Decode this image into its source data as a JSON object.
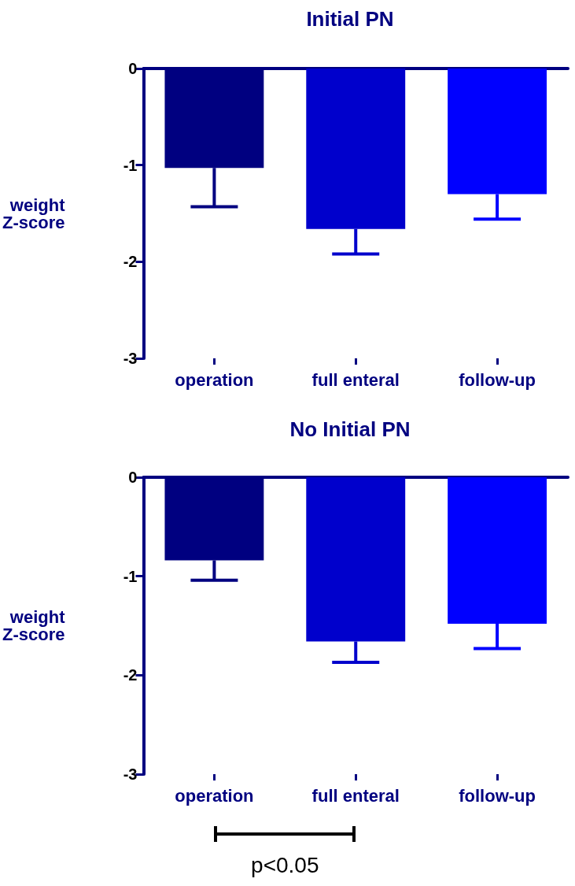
{
  "chart_data": [
    {
      "type": "bar",
      "title": "Initial PN",
      "ylabel": "weight\nZ-score",
      "categories": [
        "operation",
        "full enteral",
        "follow-up"
      ],
      "values": [
        -1.03,
        -1.66,
        -1.3
      ],
      "colors": [
        "#000080",
        "#0000cc",
        "#0000ff"
      ],
      "errors": [
        [
          -1.43,
          -1.03
        ],
        [
          -1.92,
          -1.66
        ],
        [
          -1.56,
          -1.3
        ]
      ],
      "ylim": [
        -3,
        0
      ],
      "yticks": [
        -3,
        -2,
        -1,
        0
      ],
      "grid": false
    },
    {
      "type": "bar",
      "title": "No Initial PN",
      "ylabel": "weight\nZ-score",
      "categories": [
        "operation",
        "full enteral",
        "follow-up"
      ],
      "values": [
        -0.84,
        -1.66,
        -1.48
      ],
      "colors": [
        "#000080",
        "#0000cc",
        "#0000ff"
      ],
      "errors": [
        [
          -1.04,
          -0.84
        ],
        [
          -1.87,
          -1.66
        ],
        [
          -1.73,
          -1.48
        ]
      ],
      "ylim": [
        -3,
        0
      ],
      "yticks": [
        -3,
        -2,
        -1,
        0
      ],
      "grid": false,
      "annotations": [
        "p<0.05"
      ]
    }
  ]
}
